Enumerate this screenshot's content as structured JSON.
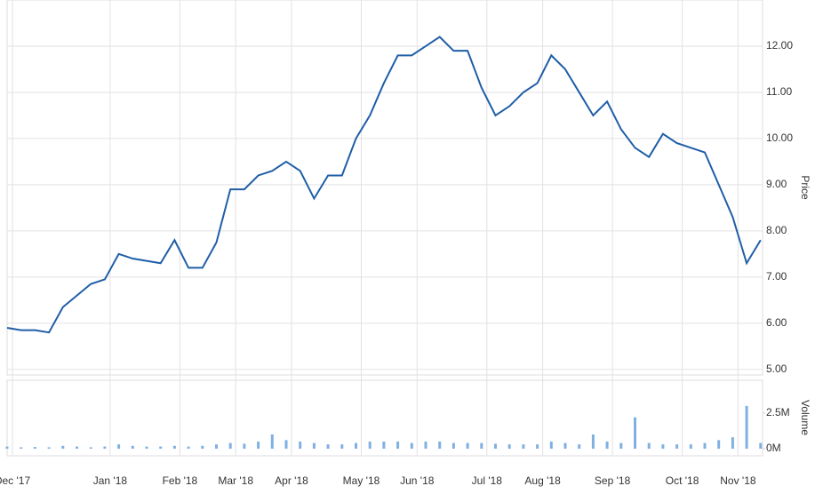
{
  "chart_data": [
    {
      "type": "line",
      "y_label": "Price",
      "color": "#1f5ea8",
      "grid": true,
      "categories": [
        "Dec '17",
        null,
        null,
        null,
        null,
        null,
        null,
        "Jan '18",
        null,
        null,
        null,
        null,
        "Feb '18",
        null,
        null,
        null,
        "Mar '18",
        null,
        null,
        null,
        "Apr '18",
        null,
        null,
        null,
        null,
        "May '18",
        null,
        null,
        null,
        "Jun '18",
        null,
        null,
        null,
        null,
        "Jul '18",
        null,
        null,
        null,
        "Aug '18",
        null,
        null,
        null,
        null,
        "Sep '18",
        null,
        null,
        null,
        null,
        "Oct '18",
        null,
        null,
        null,
        "Nov '18",
        null,
        null
      ],
      "values": [
        5.9,
        5.85,
        5.85,
        5.8,
        6.35,
        6.6,
        6.85,
        6.95,
        7.5,
        7.4,
        7.35,
        7.3,
        7.8,
        7.2,
        7.2,
        7.75,
        8.9,
        8.9,
        9.2,
        9.3,
        9.5,
        9.3,
        8.7,
        9.2,
        9.2,
        10.0,
        10.5,
        11.2,
        11.8,
        11.8,
        12.0,
        12.2,
        11.9,
        11.9,
        11.1,
        10.5,
        10.7,
        11.0,
        11.2,
        11.8,
        11.5,
        11.0,
        10.5,
        10.8,
        10.2,
        9.8,
        9.6,
        10.1,
        9.9,
        9.8,
        9.7,
        9.0,
        8.3,
        7.3,
        7.8
      ],
      "ylim": [
        4.88,
        13
      ],
      "yticks": [
        {
          "value": 5,
          "label": "5.00"
        },
        {
          "value": 6,
          "label": "6.00"
        },
        {
          "value": 7,
          "label": "7.00"
        },
        {
          "value": 8,
          "label": "8.00"
        },
        {
          "value": 9,
          "label": "9.00"
        },
        {
          "value": 10,
          "label": "10.00"
        },
        {
          "value": 11,
          "label": "11.00"
        },
        {
          "value": 12,
          "label": "12.00"
        }
      ]
    },
    {
      "type": "bar",
      "y_label": "Volume",
      "color": "#7fb0e2",
      "values": [
        0.15,
        0.1,
        0.12,
        0.1,
        0.2,
        0.15,
        0.1,
        0.15,
        0.3,
        0.2,
        0.15,
        0.15,
        0.2,
        0.15,
        0.2,
        0.3,
        0.4,
        0.35,
        0.5,
        1.0,
        0.6,
        0.5,
        0.4,
        0.3,
        0.3,
        0.4,
        0.5,
        0.5,
        0.5,
        0.4,
        0.5,
        0.5,
        0.4,
        0.4,
        0.4,
        0.35,
        0.3,
        0.3,
        0.3,
        0.5,
        0.4,
        0.3,
        1.0,
        0.5,
        0.4,
        2.2,
        0.4,
        0.3,
        0.3,
        0.3,
        0.4,
        0.6,
        0.8,
        3.0,
        0.4
      ],
      "ylim": [
        0,
        4.8
      ],
      "yticks": [
        {
          "value": 0,
          "label": "0M"
        },
        {
          "value": 2.5,
          "label": "2.5M"
        }
      ]
    }
  ]
}
